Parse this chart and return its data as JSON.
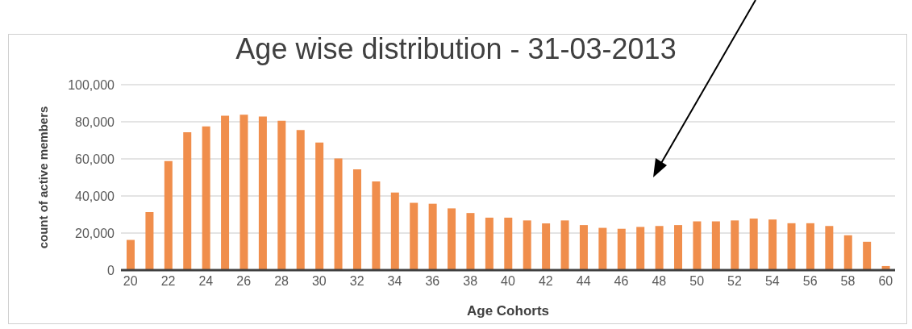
{
  "chart_data": {
    "type": "bar",
    "title": "Age wise distribution - 31-03-2013",
    "xlabel": "Age Cohorts",
    "ylabel": "count of active members",
    "categories": [
      "20",
      null,
      "22",
      null,
      "24",
      null,
      "26",
      null,
      "28",
      null,
      "30",
      null,
      "32",
      null,
      "34",
      null,
      "36",
      null,
      "38",
      null,
      "40",
      null,
      "42",
      null,
      "44",
      null,
      "46",
      null,
      "48",
      null,
      "50",
      null,
      "52",
      null,
      "54",
      null,
      "56",
      null,
      "58",
      null,
      "60"
    ],
    "values": [
      16300,
      31300,
      58800,
      74300,
      77500,
      83300,
      83800,
      82800,
      80500,
      75500,
      68800,
      60200,
      54300,
      47800,
      41800,
      36300,
      35800,
      33300,
      30800,
      28300,
      28300,
      26800,
      25200,
      26800,
      24300,
      22800,
      22300,
      23300,
      23800,
      24300,
      26300,
      26300,
      26800,
      27800,
      27300,
      25300,
      25300,
      23800,
      18800,
      15300,
      2200
    ],
    "color": "#f08e4c",
    "ylim": [
      0,
      100000
    ],
    "yticks": [
      {
        "value": 0,
        "label": "0"
      },
      {
        "value": 20000,
        "label": "20,000"
      },
      {
        "value": 40000,
        "label": "40,000"
      },
      {
        "value": 60000,
        "label": "60,000"
      },
      {
        "value": 80000,
        "label": "80,000"
      },
      {
        "value": 100000,
        "label": "100,000"
      }
    ],
    "grid": "y",
    "legend": false
  }
}
